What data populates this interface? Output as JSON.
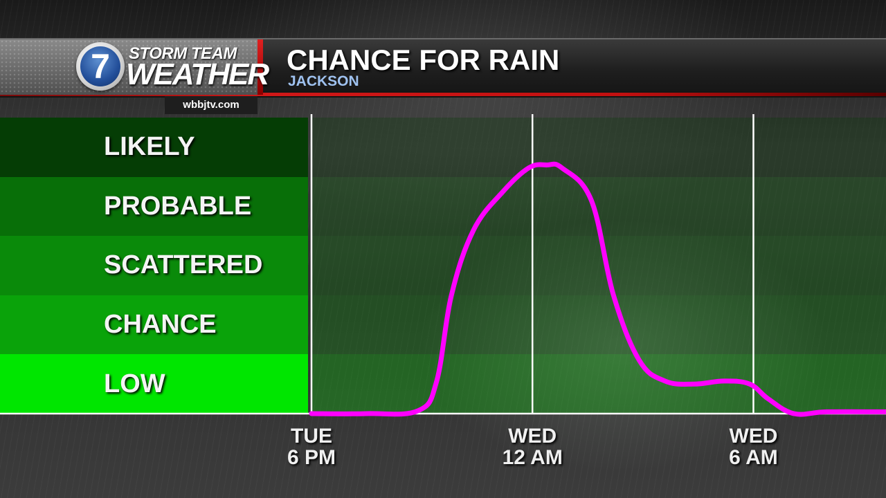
{
  "header": {
    "brand_top": "STORM TEAM",
    "brand_bottom": "WEATHER",
    "logo_number": "7",
    "website": "wbbjtv.com",
    "title": "CHANCE FOR RAIN",
    "subtitle": "JACKSON"
  },
  "chart_data": {
    "type": "line",
    "title": "CHANCE FOR RAIN",
    "subtitle": "JACKSON",
    "y_categories": [
      "LOW",
      "CHANCE",
      "SCATTERED",
      "PROBABLE",
      "LIKELY"
    ],
    "y_category_colors": [
      "#00e600",
      "#0aa30a",
      "#0a8a0a",
      "#086f08",
      "#053d05"
    ],
    "ylim": [
      0,
      5
    ],
    "x_tick_labels": [
      {
        "day": "TUE",
        "time": "6 PM",
        "hour": 0
      },
      {
        "day": "WED",
        "time": "12 AM",
        "hour": 6
      },
      {
        "day": "WED",
        "time": "6 AM",
        "hour": 12
      }
    ],
    "xlim_hours": [
      0,
      15.6
    ],
    "series": [
      {
        "color": "#ff00ff",
        "x_hours": [
          0,
          1.5,
          2.9,
          3.4,
          3.8,
          4.4,
          5.2,
          5.9,
          6.4,
          6.8,
          7.6,
          8.2,
          8.9,
          9.6,
          10.4,
          11.2,
          11.9,
          12.4,
          13.1,
          14.0,
          15.6
        ],
        "values": [
          0.0,
          0.0,
          0.05,
          0.55,
          2.0,
          3.1,
          3.75,
          4.15,
          4.2,
          4.15,
          3.6,
          2.0,
          0.9,
          0.55,
          0.5,
          0.55,
          0.5,
          0.25,
          0.0,
          0.03,
          0.03
        ]
      }
    ]
  }
}
